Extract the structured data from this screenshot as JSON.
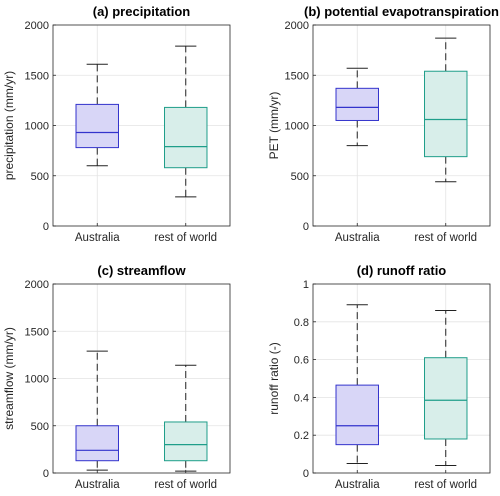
{
  "chart_data": [
    {
      "type": "box",
      "title": "(a) precipitation",
      "ylabel": "precipitation (mm/yr)",
      "ylim": [
        0,
        2000
      ],
      "yticks": [
        "0",
        "500",
        "1000",
        "1500",
        "2000"
      ],
      "ytick_values": [
        0,
        500,
        1000,
        1500,
        2000
      ],
      "grid": true,
      "categories": [
        "Australia",
        "rest of world"
      ],
      "colors": [
        "#3333cc",
        "#1f9e8a"
      ],
      "fills": [
        "#d8d6f7",
        "#d8eeea"
      ],
      "boxes": [
        {
          "category": "Australia",
          "whisker_low": 600,
          "q1": 780,
          "median": 930,
          "q3": 1210,
          "whisker_high": 1610
        },
        {
          "category": "rest of world",
          "whisker_low": 290,
          "q1": 580,
          "median": 790,
          "q3": 1180,
          "whisker_high": 1790
        }
      ]
    },
    {
      "type": "box",
      "title": "(b) potential evapotranspiration",
      "ylabel": "PET (mm/yr)",
      "ylim": [
        0,
        2000
      ],
      "yticks": [
        "0",
        "500",
        "1000",
        "1500",
        "2000"
      ],
      "ytick_values": [
        0,
        500,
        1000,
        1500,
        2000
      ],
      "grid": true,
      "categories": [
        "Australia",
        "rest of world"
      ],
      "colors": [
        "#3333cc",
        "#1f9e8a"
      ],
      "fills": [
        "#d8d6f7",
        "#d8eeea"
      ],
      "boxes": [
        {
          "category": "Australia",
          "whisker_low": 800,
          "q1": 1050,
          "median": 1180,
          "q3": 1370,
          "whisker_high": 1570
        },
        {
          "category": "rest of world",
          "whisker_low": 440,
          "q1": 690,
          "median": 1060,
          "q3": 1540,
          "whisker_high": 1870
        }
      ]
    },
    {
      "type": "box",
      "title": "(c) streamflow",
      "ylabel": "streamflow (mm/yr)",
      "ylim": [
        0,
        2000
      ],
      "yticks": [
        "0",
        "500",
        "1000",
        "1500",
        "2000"
      ],
      "ytick_values": [
        0,
        500,
        1000,
        1500,
        2000
      ],
      "grid": true,
      "categories": [
        "Australia",
        "rest of world"
      ],
      "colors": [
        "#3333cc",
        "#1f9e8a"
      ],
      "fills": [
        "#d8d6f7",
        "#d8eeea"
      ],
      "boxes": [
        {
          "category": "Australia",
          "whisker_low": 30,
          "q1": 130,
          "median": 240,
          "q3": 500,
          "whisker_high": 1290
        },
        {
          "category": "rest of world",
          "whisker_low": 20,
          "q1": 130,
          "median": 300,
          "q3": 540,
          "whisker_high": 1140
        }
      ]
    },
    {
      "type": "box",
      "title": "(d) runoff ratio",
      "ylabel": "runoff ratio (-)",
      "ylim": [
        0,
        1
      ],
      "yticks": [
        "0",
        "0.2",
        "0.4",
        "0.6",
        "0.8",
        "1"
      ],
      "ytick_values": [
        0,
        0.2,
        0.4,
        0.6,
        0.8,
        1
      ],
      "grid": true,
      "categories": [
        "Australia",
        "rest of world"
      ],
      "colors": [
        "#3333cc",
        "#1f9e8a"
      ],
      "fills": [
        "#d8d6f7",
        "#d8eeea"
      ],
      "boxes": [
        {
          "category": "Australia",
          "whisker_low": 0.05,
          "q1": 0.15,
          "median": 0.25,
          "q3": 0.465,
          "whisker_high": 0.89
        },
        {
          "category": "rest of world",
          "whisker_low": 0.04,
          "q1": 0.18,
          "median": 0.385,
          "q3": 0.61,
          "whisker_high": 0.86
        }
      ]
    }
  ]
}
